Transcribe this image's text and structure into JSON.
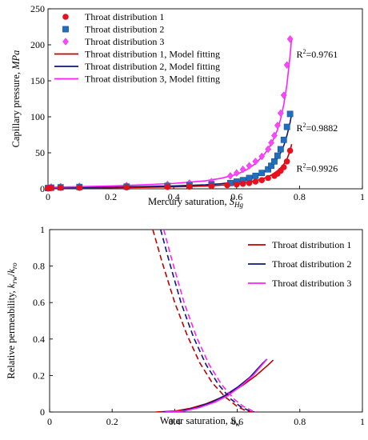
{
  "chart_data": [
    {
      "type": "scatter",
      "xlabel": "Mercury saturation, ",
      "xlabel_sub": "Hg",
      "xlabel_var": "S",
      "ylabel": "Capillary pressure, ",
      "ylabel_unit": "MPa",
      "xlim": [
        0,
        1
      ],
      "ylim": [
        0,
        250
      ],
      "xticks": [
        "0",
        "0.2",
        "0.4",
        "0.6",
        "0.8",
        "1"
      ],
      "yticks": [
        "0",
        "50",
        "100",
        "150",
        "200",
        "250"
      ],
      "legend_position": "top-left",
      "grid": false,
      "legend": [
        "Throat distribution 1",
        "Throat distribution 2",
        "Throat distribution 3",
        "Throat distribution 1, Model fitting",
        "Throat distribution 2, Model fitting",
        "Throat distribution 3, Model fitting"
      ],
      "series": [
        {
          "name": "Throat distribution 1",
          "marker": "circle",
          "color": "#e8101c",
          "x": [
            0.0,
            0.01,
            0.04,
            0.1,
            0.25,
            0.38,
            0.45,
            0.52,
            0.57,
            0.6,
            0.62,
            0.64,
            0.66,
            0.68,
            0.7,
            0.72,
            0.73,
            0.74,
            0.75,
            0.76,
            0.77
          ],
          "y": [
            0.5,
            1,
            1.5,
            1.5,
            2,
            2.5,
            3,
            4,
            5,
            6,
            7,
            8,
            10,
            12,
            15,
            18,
            21,
            25,
            30,
            38,
            53
          ]
        },
        {
          "name": "Throat distribution 2",
          "marker": "square",
          "color": "#1f6fc0",
          "x": [
            0.0,
            0.01,
            0.04,
            0.1,
            0.25,
            0.38,
            0.45,
            0.52,
            0.58,
            0.6,
            0.62,
            0.64,
            0.66,
            0.68,
            0.7,
            0.71,
            0.72,
            0.73,
            0.74,
            0.75,
            0.76,
            0.77
          ],
          "y": [
            1,
            1.5,
            2,
            2.5,
            3,
            4,
            5,
            6,
            8,
            10,
            12,
            15,
            18,
            22,
            27,
            32,
            38,
            46,
            55,
            68,
            86,
            104
          ]
        },
        {
          "name": "Throat distribution 3",
          "marker": "diamond",
          "color": "#ff45ff",
          "x": [
            0.0,
            0.01,
            0.04,
            0.1,
            0.25,
            0.38,
            0.45,
            0.52,
            0.58,
            0.6,
            0.62,
            0.64,
            0.66,
            0.68,
            0.7,
            0.71,
            0.72,
            0.73,
            0.74,
            0.75,
            0.76,
            0.77
          ],
          "y": [
            2,
            2.5,
            3,
            3.5,
            4.5,
            6,
            8,
            10,
            18,
            22,
            27,
            32,
            38,
            45,
            55,
            64,
            74,
            88,
            105,
            130,
            172,
            208
          ]
        },
        {
          "name": "Throat distribution 1, Model fitting",
          "style": "line",
          "color": "#c00000",
          "x": [
            0.0,
            0.1,
            0.2,
            0.3,
            0.4,
            0.5,
            0.55,
            0.6,
            0.63,
            0.66,
            0.69,
            0.71,
            0.73,
            0.74,
            0.75,
            0.76,
            0.77,
            0.775
          ],
          "y": [
            0.5,
            1,
            1.5,
            2,
            2.7,
            3.8,
            5,
            6.5,
            8.5,
            11,
            15,
            19,
            25,
            29,
            34,
            41,
            53,
            62
          ]
        },
        {
          "name": "Throat distribution 2, Model fitting",
          "style": "line",
          "color": "#0a1a7a",
          "x": [
            0.0,
            0.1,
            0.2,
            0.3,
            0.4,
            0.5,
            0.55,
            0.6,
            0.63,
            0.66,
            0.69,
            0.71,
            0.73,
            0.74,
            0.75,
            0.76,
            0.77,
            0.775
          ],
          "y": [
            1,
            2,
            2.5,
            3.2,
            4,
            5.5,
            7,
            9.5,
            12.5,
            17,
            24,
            31,
            42,
            50,
            60,
            74,
            92,
            104
          ]
        },
        {
          "name": "Throat distribution 3, Model fitting",
          "style": "line",
          "color": "#ff20ff",
          "x": [
            0.0,
            0.1,
            0.2,
            0.3,
            0.4,
            0.5,
            0.55,
            0.6,
            0.63,
            0.66,
            0.69,
            0.71,
            0.73,
            0.74,
            0.75,
            0.76,
            0.77,
            0.775
          ],
          "y": [
            2,
            3,
            4,
            5.5,
            7.5,
            11,
            14.5,
            20,
            26,
            35,
            49,
            62,
            82,
            97,
            117,
            145,
            185,
            210
          ]
        }
      ],
      "annotations": [
        {
          "text": "R",
          "sup": "2",
          "value": "=0.9761",
          "x": 0.79,
          "y": 182
        },
        {
          "text": "R",
          "sup": "2",
          "value": "=0.9882",
          "x": 0.79,
          "y": 80
        },
        {
          "text": "R",
          "sup": "2",
          "value": "=0.9926",
          "x": 0.79,
          "y": 24
        }
      ]
    },
    {
      "type": "line",
      "xlabel": "Water saturation, ",
      "xlabel_var": "S",
      "xlabel_sub": "w",
      "ylabel": "Relative permeability, ",
      "ylabel_var1": "k",
      "ylabel_sub1": "rw",
      "ylabel_sep": "/",
      "ylabel_var2": "k",
      "ylabel_sub2": "ro",
      "xlim": [
        0,
        1
      ],
      "ylim": [
        0,
        1
      ],
      "xticks": [
        "0",
        "0.2",
        "0.4",
        "0.6",
        "0.8",
        "1"
      ],
      "yticks": [
        "0",
        "0.2",
        "0.4",
        "0.6",
        "0.8",
        "1"
      ],
      "legend_position": "top-right",
      "grid": false,
      "legend": [
        "Throat distribution 1",
        "Throat distribution 2",
        "Throat distribution 3"
      ],
      "series": [
        {
          "name": "Throat distribution 1",
          "color": "#c00000",
          "krw": {
            "x": [
              0.34,
              0.4,
              0.45,
              0.5,
              0.55,
              0.58,
              0.62,
              0.66,
              0.7,
              0.715
            ],
            "y": [
              0.0,
              0.005,
              0.02,
              0.045,
              0.08,
              0.105,
              0.15,
              0.2,
              0.26,
              0.285
            ]
          },
          "kro": {
            "x": [
              0.33,
              0.36,
              0.4,
              0.44,
              0.48,
              0.52,
              0.56,
              0.6,
              0.63,
              0.65
            ],
            "y": [
              1.0,
              0.82,
              0.6,
              0.42,
              0.27,
              0.16,
              0.085,
              0.03,
              0.005,
              0.0
            ]
          }
        },
        {
          "name": "Throat distribution 2",
          "color": "#0a1a7a",
          "krw": {
            "x": [
              0.36,
              0.42,
              0.47,
              0.52,
              0.56,
              0.6,
              0.64,
              0.68,
              0.695
            ],
            "y": [
              0.0,
              0.005,
              0.025,
              0.055,
              0.09,
              0.135,
              0.19,
              0.265,
              0.29
            ]
          },
          "kro": {
            "x": [
              0.355,
              0.38,
              0.42,
              0.46,
              0.5,
              0.54,
              0.58,
              0.61,
              0.64,
              0.655
            ],
            "y": [
              1.0,
              0.84,
              0.6,
              0.41,
              0.26,
              0.15,
              0.07,
              0.03,
              0.005,
              0.0
            ]
          }
        },
        {
          "name": "Throat distribution 3",
          "color": "#ff20ff",
          "krw": {
            "x": [
              0.37,
              0.43,
              0.48,
              0.53,
              0.57,
              0.61,
              0.65,
              0.68,
              0.695
            ],
            "y": [
              0.0,
              0.005,
              0.025,
              0.055,
              0.09,
              0.14,
              0.2,
              0.26,
              0.29
            ]
          },
          "kro": {
            "x": [
              0.365,
              0.39,
              0.43,
              0.47,
              0.51,
              0.55,
              0.59,
              0.62,
              0.65,
              0.665
            ],
            "y": [
              1.0,
              0.84,
              0.6,
              0.41,
              0.26,
              0.15,
              0.07,
              0.03,
              0.005,
              0.0
            ]
          }
        }
      ]
    }
  ]
}
